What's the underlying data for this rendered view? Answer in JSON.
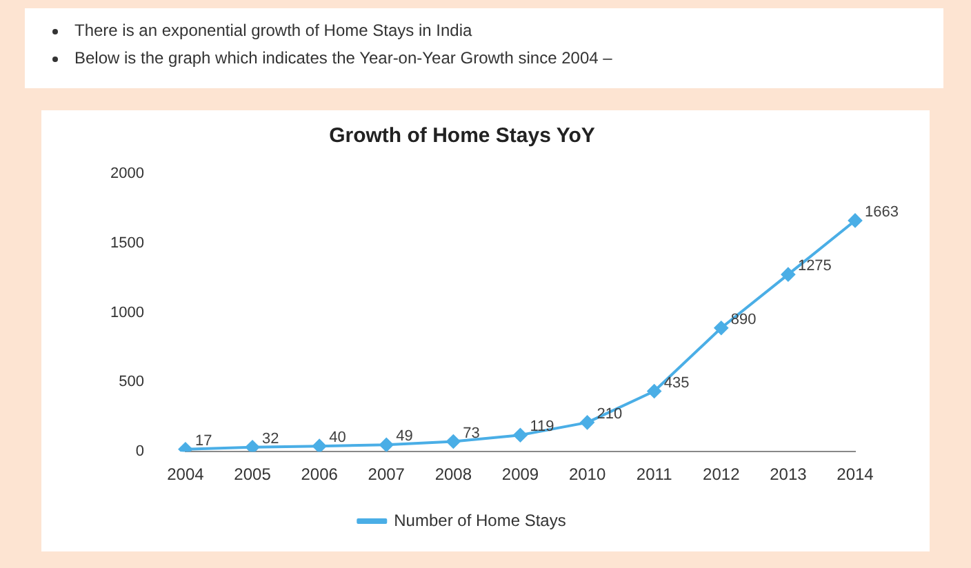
{
  "chart_data": {
    "type": "line",
    "title": "Growth of Home Stays YoY",
    "annotations": [
      "There is an exponential growth of Home Stays in India",
      "Below is the graph which indicates the Year-on-Year Growth since 2004 –"
    ],
    "categories": [
      "2004",
      "2005",
      "2006",
      "2007",
      "2008",
      "2009",
      "2010",
      "2011",
      "2012",
      "2013",
      "2014"
    ],
    "series": [
      {
        "name": "Number of Home Stays",
        "color": "#4aaee6",
        "values": [
          17,
          32,
          40,
          49,
          73,
          119,
          210,
          435,
          890,
          1275,
          1663
        ]
      }
    ],
    "ylim": [
      0,
      2000
    ],
    "yticks": [
      0,
      500,
      1000,
      1500,
      2000
    ],
    "grid": false,
    "legend": "bottom",
    "marker": "diamond",
    "line_style": "solid",
    "data_labels": true
  }
}
